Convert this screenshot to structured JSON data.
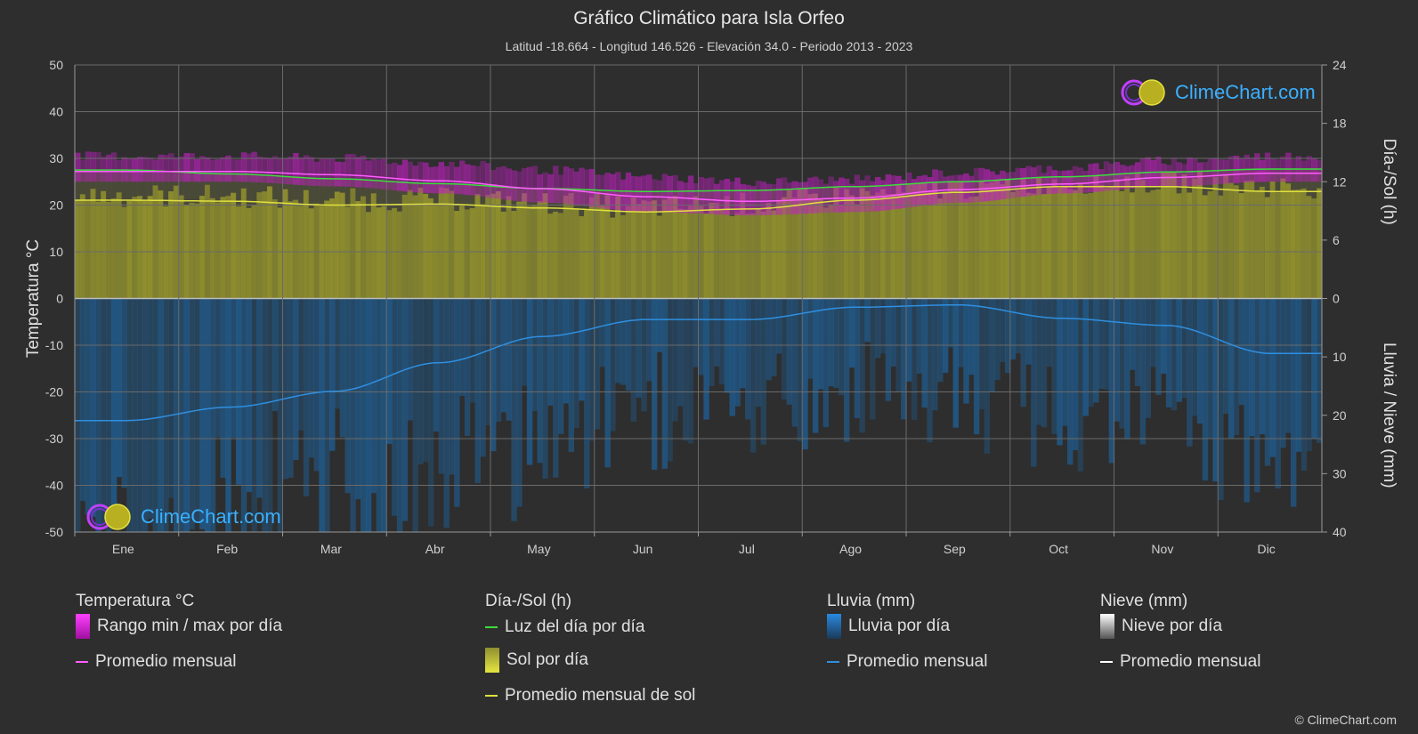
{
  "title": "Gráfico Climático para Isla Orfeo",
  "subtitle": "Latitud -18.664 - Longitud 146.526 - Elevación 34.0 - Periodo 2013 - 2023",
  "logo_text": "ClimeChart.com",
  "copyright": "© ClimeChart.com",
  "chart_data": {
    "type": "line",
    "categories": [
      "Ene",
      "Feb",
      "Mar",
      "Abr",
      "May",
      "Jun",
      "Jul",
      "Ago",
      "Sep",
      "Oct",
      "Nov",
      "Dic"
    ],
    "left_axis": {
      "label": "Temperatura °C",
      "ylim": [
        -50,
        50
      ],
      "ticks": [
        50,
        40,
        30,
        20,
        10,
        0,
        -10,
        -20,
        -30,
        -40,
        -50
      ]
    },
    "right_axis_top": {
      "label": "Día-/Sol (h)",
      "ylim": [
        0,
        24
      ],
      "ticks": [
        24,
        18,
        12,
        6,
        0
      ]
    },
    "right_axis_bottom": {
      "label": "Lluvia / Nieve (mm)",
      "ylim": [
        0,
        40
      ],
      "ticks": [
        0,
        10,
        20,
        30,
        40
      ]
    },
    "grid": true,
    "series": [
      {
        "name": "Luz del día por día",
        "axis": "sun_h",
        "color": "#3ddc3d",
        "values": [
          13.2,
          12.8,
          12.3,
          11.8,
          11.3,
          11.0,
          11.1,
          11.5,
          12.0,
          12.5,
          13.0,
          13.3
        ]
      },
      {
        "name": "Promedio mensual de sol",
        "axis": "sun_h",
        "color": "#e0e040",
        "values": [
          10.1,
          10.0,
          9.6,
          9.7,
          9.3,
          8.9,
          9.2,
          10.1,
          10.9,
          11.5,
          11.5,
          11.0
        ]
      },
      {
        "name": "Promedio mensual",
        "axis": "temp_c",
        "color": "#ff5cff",
        "values": [
          27.2,
          27.2,
          26.5,
          25.2,
          23.5,
          21.8,
          20.8,
          21.5,
          23.3,
          24.5,
          25.9,
          26.8
        ]
      },
      {
        "name": "Promedio mensual",
        "axis": "rain_mm",
        "color": "#2f8fe0",
        "values": [
          20.9,
          18.6,
          15.9,
          11.0,
          6.5,
          3.6,
          3.6,
          1.5,
          1.1,
          3.4,
          4.6,
          9.4
        ]
      }
    ],
    "temperature_range": {
      "name": "Rango min / max por día",
      "min": [
        25.0,
        25.0,
        24.0,
        22.5,
        20.5,
        18.5,
        17.8,
        18.5,
        20.5,
        22.5,
        24.0,
        25.0
      ],
      "max": [
        29.5,
        29.5,
        29.0,
        28.0,
        26.5,
        25.0,
        24.0,
        24.5,
        26.0,
        27.0,
        28.5,
        29.5
      ]
    }
  },
  "legend": {
    "temp": {
      "header": "Temperatura °C",
      "range": "Rango min / max por día",
      "avg": "Promedio mensual"
    },
    "sun": {
      "header": "Día-/Sol (h)",
      "daylight": "Luz del día por día",
      "sun": "Sol por día",
      "avg": "Promedio mensual de sol"
    },
    "rain": {
      "header": "Lluvia (mm)",
      "daily": "Lluvia por día",
      "avg": "Promedio mensual"
    },
    "snow": {
      "header": "Nieve (mm)",
      "daily": "Nieve por día",
      "avg": "Promedio mensual"
    }
  },
  "colors": {
    "background": "#2e2e2e",
    "temp_range": "#c020c0",
    "daylight": "#3ddc3d",
    "sun_fill": "#8f8f30",
    "sun_avg": "#e0e040",
    "temp_avg": "#ff5cff",
    "rain_fill": "#1e5a8a",
    "rain_avg": "#2f8fe0",
    "snow": "#ffffff"
  }
}
